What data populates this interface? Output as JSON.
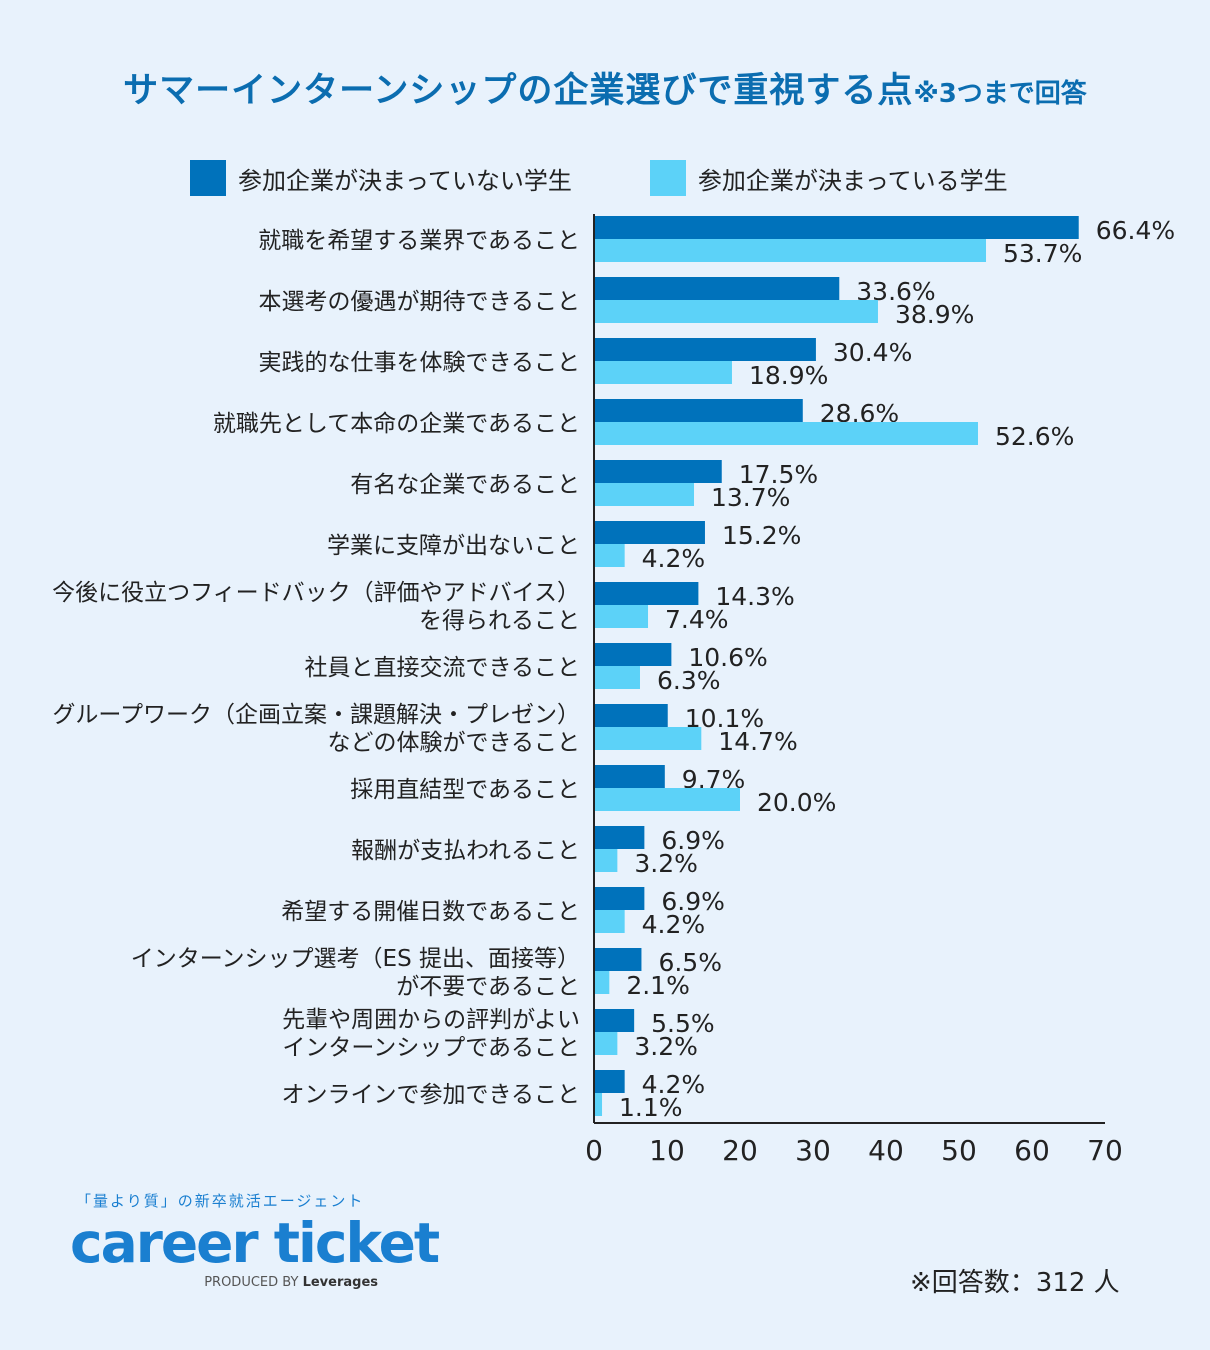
{
  "title": {
    "main": "サマーインターンシップの企業選びで重視する点",
    "note": "※3つまで回答"
  },
  "colors": {
    "dark": "#0072bb",
    "light": "#5cd2f8",
    "axis": "#222222"
  },
  "chart_data": {
    "type": "bar",
    "orientation": "horizontal",
    "categories": [
      [
        "就職を希望する業界であること"
      ],
      [
        "本選考の優遇が期待できること"
      ],
      [
        "実践的な仕事を体験できること"
      ],
      [
        "就職先として本命の企業であること"
      ],
      [
        "有名な企業であること"
      ],
      [
        "学業に支障が出ないこと"
      ],
      [
        "今後に役立つフィードバック（評価やアドバイス）",
        "を得られること"
      ],
      [
        "社員と直接交流できること"
      ],
      [
        "グループワーク（企画立案・課題解決・プレゼン）",
        "などの体験ができること"
      ],
      [
        "採用直結型であること"
      ],
      [
        "報酬が支払われること"
      ],
      [
        "希望する開催日数であること"
      ],
      [
        "インターンシップ選考（ES 提出、面接等）",
        "が不要であること"
      ],
      [
        "先輩や周囲からの評判がよい",
        "インターンシップであること"
      ],
      [
        "オンラインで参加できること"
      ]
    ],
    "series": [
      {
        "name": "参加企業が決まっていない学生",
        "color": "#0072bb",
        "values": [
          66.4,
          33.6,
          30.4,
          28.6,
          17.5,
          15.2,
          14.3,
          10.6,
          10.1,
          9.7,
          6.9,
          6.9,
          6.5,
          5.5,
          4.2
        ]
      },
      {
        "name": "参加企業が決まっている学生",
        "color": "#5cd2f8",
        "values": [
          53.7,
          38.9,
          18.9,
          52.6,
          13.7,
          4.2,
          7.4,
          6.3,
          14.7,
          20.0,
          3.2,
          4.2,
          2.1,
          3.2,
          1.1
        ]
      }
    ],
    "xlim": [
      0,
      70
    ],
    "xticks": [
      0,
      10,
      20,
      30,
      40,
      50,
      60,
      70
    ],
    "value_suffix": "%",
    "legend": "top",
    "grid": false
  },
  "footnote": "※回答数：312 人",
  "logo": {
    "tagline": "「量より質」の新卒就活エージェント",
    "wordmark": "career ticket",
    "produced_by": "PRODUCED BY",
    "brand": "Leverages"
  }
}
